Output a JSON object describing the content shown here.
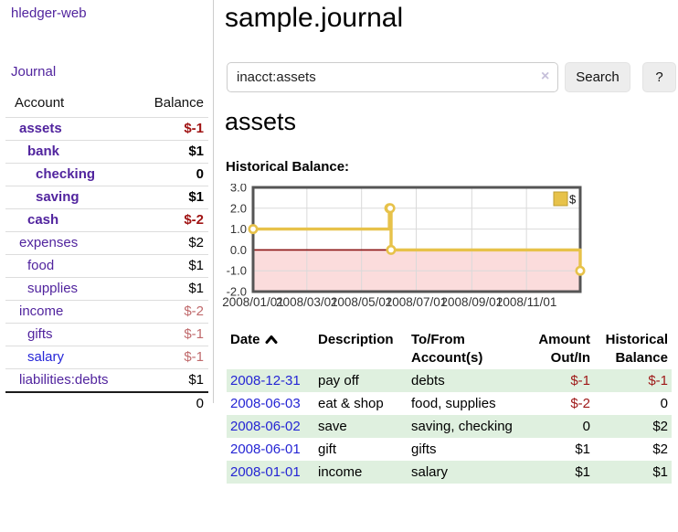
{
  "sidebar": {
    "app_title": "hledger-web",
    "nav": {
      "journal": "Journal"
    },
    "accounts": {
      "col_account": "Account",
      "col_balance": "Balance",
      "rows": [
        {
          "name": "assets",
          "level": 1,
          "bold": true,
          "balance": "$-1",
          "neg": "strong"
        },
        {
          "name": "bank",
          "level": 2,
          "bold": true,
          "balance": "$1",
          "neg": "none"
        },
        {
          "name": "checking",
          "level": 3,
          "bold": true,
          "balance": "0",
          "neg": "none"
        },
        {
          "name": "saving",
          "level": 3,
          "bold": true,
          "balance": "$1",
          "neg": "none"
        },
        {
          "name": "cash",
          "level": 2,
          "bold": true,
          "balance": "$-2",
          "neg": "strong"
        },
        {
          "name": "expenses",
          "level": 1,
          "bold": false,
          "balance": "$2",
          "neg": "none"
        },
        {
          "name": "food",
          "level": 2,
          "bold": false,
          "balance": "$1",
          "neg": "none"
        },
        {
          "name": "supplies",
          "level": 2,
          "bold": false,
          "balance": "$1",
          "neg": "none"
        },
        {
          "name": "income",
          "level": 1,
          "bold": false,
          "balance": "$-2",
          "neg": "muted"
        },
        {
          "name": "gifts",
          "level": 2,
          "bold": false,
          "balance": "$-1",
          "neg": "muted"
        },
        {
          "name": "salary",
          "level": 2,
          "bold": false,
          "balance": "$-1",
          "neg": "muted",
          "link_color": "blue"
        },
        {
          "name": "liabilities:debts",
          "level": 1,
          "bold": false,
          "balance": "$1",
          "neg": "none"
        }
      ],
      "total": "0"
    }
  },
  "main": {
    "title": "sample.journal",
    "search": {
      "value": "inacct:assets",
      "clear_icon": "×",
      "button_label": "Search",
      "help_label": "?"
    },
    "account_heading": "assets",
    "chart_label": "Historical Balance:",
    "register": {
      "headers": [
        "Date",
        "Description",
        "To/From Account(s)",
        "Amount Out/In",
        "Historical Balance"
      ],
      "sort_icon": "chevron-up",
      "rows": [
        {
          "date": "2008-12-31",
          "description": "pay off",
          "accounts": "debts",
          "amount": "$-1",
          "amount_neg": true,
          "balance": "$-1",
          "balance_neg": true
        },
        {
          "date": "2008-06-03",
          "description": "eat & shop",
          "accounts": "food, supplies",
          "amount": "$-2",
          "amount_neg": true,
          "balance": "0",
          "balance_neg": false
        },
        {
          "date": "2008-06-02",
          "description": "save",
          "accounts": "saving, checking",
          "amount": "0",
          "amount_neg": false,
          "balance": "$2",
          "balance_neg": false
        },
        {
          "date": "2008-06-01",
          "description": "gift",
          "accounts": "gifts",
          "amount": "$1",
          "amount_neg": false,
          "balance": "$2",
          "balance_neg": false
        },
        {
          "date": "2008-01-01",
          "description": "income",
          "accounts": "salary",
          "amount": "$1",
          "amount_neg": false,
          "balance": "$1",
          "balance_neg": false
        }
      ]
    }
  },
  "chart_data": {
    "type": "line",
    "title": "Historical Balance",
    "step": "after",
    "legend": [
      {
        "label": "$",
        "color": "#E7C24A"
      }
    ],
    "legend_position": "top-right",
    "grid": true,
    "x_domain": [
      "2008-01-01",
      "2008-12-31"
    ],
    "ylim": [
      -2,
      3
    ],
    "yticks": [
      {
        "v": 3,
        "label": "3.0"
      },
      {
        "v": 2,
        "label": "2.0"
      },
      {
        "v": 1,
        "label": "1.0"
      },
      {
        "v": 0,
        "label": "0.0"
      },
      {
        "v": -1,
        "label": "-1.0"
      },
      {
        "v": -2,
        "label": "-2.0"
      }
    ],
    "xticks": [
      {
        "date": "2008-01-01",
        "label": "2008/01/01"
      },
      {
        "date": "2008-03-01",
        "label": "2008/03/01"
      },
      {
        "date": "2008-05-01",
        "label": "2008/05/01"
      },
      {
        "date": "2008-07-01",
        "label": "2008/07/01"
      },
      {
        "date": "2008-09-01",
        "label": "2008/09/01"
      },
      {
        "date": "2008-11-01",
        "label": "2008/11/01"
      }
    ],
    "points": [
      {
        "date": "2008-01-01",
        "value": 1
      },
      {
        "date": "2008-06-01",
        "value": 2
      },
      {
        "date": "2008-06-02",
        "value": 2
      },
      {
        "date": "2008-06-03",
        "value": 0
      },
      {
        "date": "2008-12-31",
        "value": -1
      }
    ],
    "colors": {
      "line": "#E7C24A",
      "marker_fill": "#FFFFFF",
      "legend_swatch_border": "#BD9C31",
      "negative_area": "#FBDCDC",
      "zero_line": "#8B1212",
      "grid": "#DADADA",
      "border": "#555555"
    }
  }
}
